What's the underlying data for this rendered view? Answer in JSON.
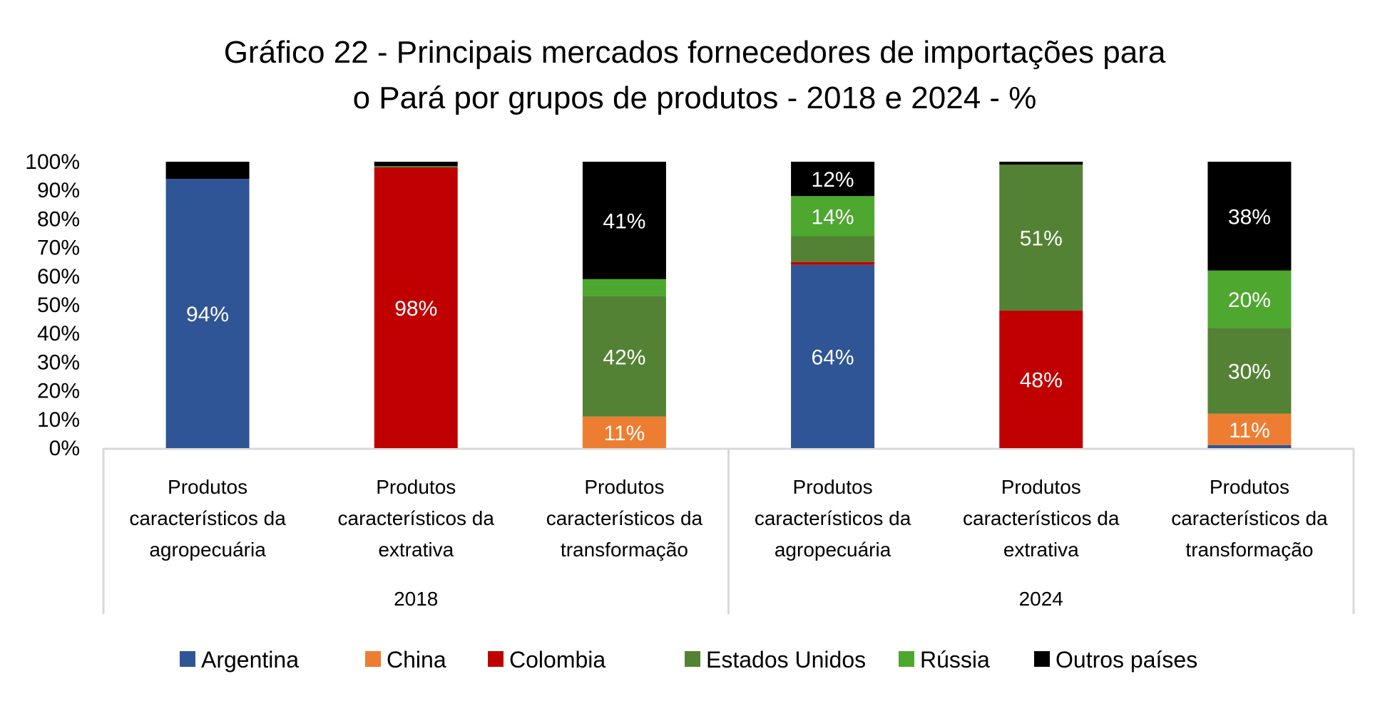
{
  "chart_data": {
    "type": "bar",
    "stacked": true,
    "percent_stacked": true,
    "title_lines": [
      "Gráfico 22 - Principais mercados fornecedores de importações para",
      "o Pará por grupos de produtos - 2018 e 2024 - %"
    ],
    "xlabel": "",
    "ylabel": "",
    "ylim": [
      0,
      100
    ],
    "y_ticks": [
      "0%",
      "10%",
      "20%",
      "30%",
      "40%",
      "50%",
      "60%",
      "70%",
      "80%",
      "90%",
      "100%"
    ],
    "grid": false,
    "legend_position": "bottom",
    "groups": [
      {
        "label": "2018",
        "categories": [
          0,
          1,
          2
        ]
      },
      {
        "label": "2024",
        "categories": [
          3,
          4,
          5
        ]
      }
    ],
    "categories": [
      [
        "Produtos",
        "característicos da",
        "agropecuária"
      ],
      [
        "Produtos",
        "característicos da",
        "extrativa"
      ],
      [
        "Produtos",
        "característicos da",
        "transformação"
      ],
      [
        "Produtos",
        "característicos da",
        "agropecuária"
      ],
      [
        "Produtos",
        "característicos da",
        "extrativa"
      ],
      [
        "Produtos",
        "característicos da",
        "transformação"
      ]
    ],
    "series": [
      {
        "name": "Argentina",
        "color": "#2F5597",
        "values": [
          94,
          0,
          0,
          64,
          0,
          1
        ],
        "labels": [
          "94%",
          "",
          "",
          "64%",
          "",
          ""
        ]
      },
      {
        "name": "China",
        "color": "#ED7D31",
        "values": [
          0,
          0,
          11,
          0,
          0,
          11
        ],
        "labels": [
          "",
          "",
          "11%",
          "",
          "",
          "11%"
        ]
      },
      {
        "name": "Colombia",
        "color": "#C00000",
        "values": [
          0,
          98,
          0,
          1,
          48,
          0
        ],
        "labels": [
          "",
          "98%",
          "",
          "",
          "48%",
          ""
        ]
      },
      {
        "name": "Estados Unidos",
        "color": "#548235",
        "values": [
          0,
          0.5,
          42,
          9,
          51,
          30
        ],
        "labels": [
          "",
          "",
          "42%",
          "",
          "51%",
          "30%"
        ]
      },
      {
        "name": "Rússia",
        "color": "#4EA72E",
        "values": [
          0,
          0,
          6,
          14,
          0,
          20
        ],
        "labels": [
          "",
          "",
          "",
          "14%",
          "",
          "20%"
        ]
      },
      {
        "name": "Outros países",
        "color": "#000000",
        "values": [
          6,
          1.5,
          41,
          12,
          1,
          38
        ],
        "labels": [
          "",
          "",
          "41%",
          "12%",
          "",
          "38%"
        ]
      }
    ]
  }
}
